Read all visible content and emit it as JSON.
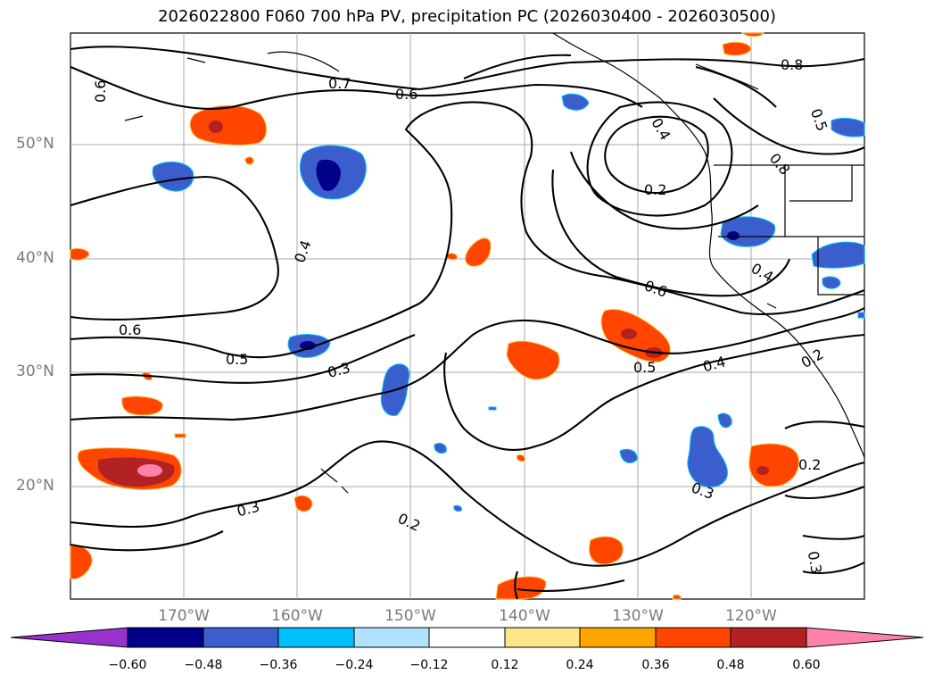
{
  "title": "2026022800 F060 700 hPa PV, precipitation PC (2026030400 - 2026030500)",
  "map": {
    "lat_labels": [
      "50°N",
      "40°N",
      "30°N",
      "20°N"
    ],
    "lon_labels": [
      "170°W",
      "160°W",
      "150°W",
      "140°W",
      "130°W",
      "120°W"
    ],
    "contour_labels": [
      "0.6",
      "0.7",
      "0.6",
      "0.8",
      "0.5",
      "0.2",
      "0.4",
      "0.6",
      "0.4",
      "0.6",
      "0.5",
      "0.3",
      "0.5",
      "0.4",
      "0.2",
      "0.3",
      "0.2",
      "0.3",
      "0.2",
      "0.3",
      "0.4",
      "0.8"
    ]
  },
  "colorbar": {
    "ticks": [
      "−0.60",
      "−0.48",
      "−0.36",
      "−0.24",
      "−0.12",
      "0.12",
      "0.24",
      "0.36",
      "0.48",
      "0.60"
    ],
    "colors": [
      "#9932cc",
      "#00008b",
      "#3a5fcd",
      "#00bfff",
      "#b0e2ff",
      "#ffffff",
      "#fde68a",
      "#ffa500",
      "#ff4500",
      "#b22222",
      "#ff82ab",
      "#ff82ab"
    ]
  }
}
